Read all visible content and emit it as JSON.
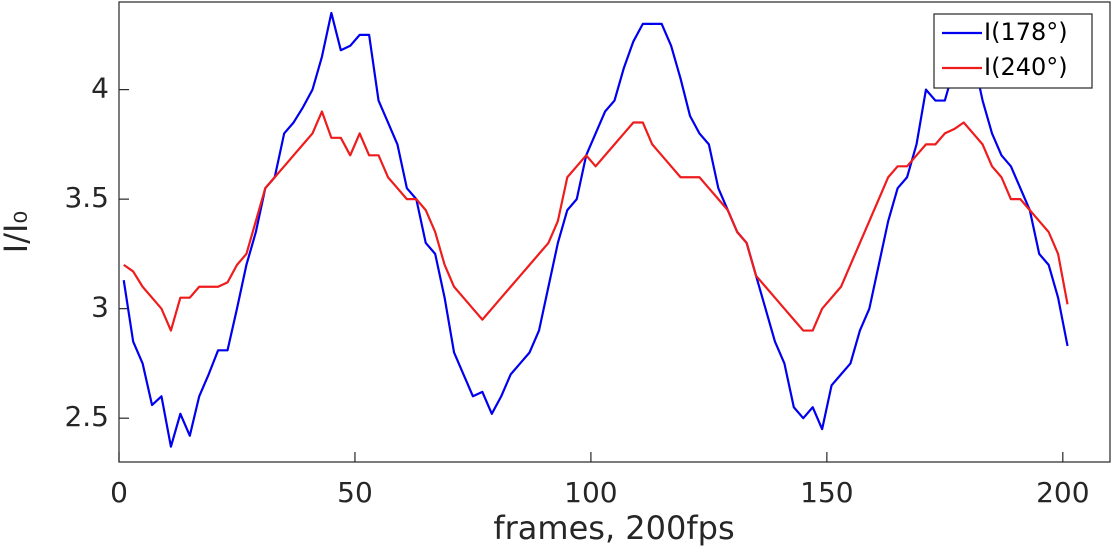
{
  "chart_data": {
    "type": "line",
    "xlabel": "frames, 200fps",
    "ylabel": "I/I₀",
    "x": [
      1,
      3,
      5,
      7,
      9,
      11,
      13,
      15,
      17,
      19,
      21,
      23,
      25,
      27,
      29,
      31,
      33,
      35,
      37,
      39,
      41,
      43,
      45,
      47,
      49,
      51,
      53,
      55,
      57,
      59,
      61,
      63,
      65,
      67,
      69,
      71,
      73,
      75,
      77,
      79,
      81,
      83,
      85,
      87,
      89,
      91,
      93,
      95,
      97,
      99,
      101,
      103,
      105,
      107,
      109,
      111,
      113,
      115,
      117,
      119,
      121,
      123,
      125,
      127,
      129,
      131,
      133,
      135,
      137,
      139,
      141,
      143,
      145,
      147,
      149,
      151,
      153,
      155,
      157,
      159,
      161,
      163,
      165,
      167,
      169,
      171,
      173,
      175,
      177,
      179,
      181,
      183,
      185,
      187,
      189,
      191,
      193,
      195,
      197,
      199,
      201
    ],
    "series": [
      {
        "name": "I(178°)",
        "color": "#0000ee",
        "values": [
          3.13,
          2.85,
          2.75,
          2.56,
          2.6,
          2.37,
          2.52,
          2.42,
          2.6,
          2.7,
          2.81,
          2.81,
          3.0,
          3.2,
          3.35,
          3.55,
          3.6,
          3.8,
          3.85,
          3.92,
          4.0,
          4.15,
          4.35,
          4.18,
          4.2,
          4.25,
          4.25,
          3.95,
          3.85,
          3.75,
          3.55,
          3.5,
          3.3,
          3.25,
          3.05,
          2.8,
          2.7,
          2.6,
          2.62,
          2.52,
          2.6,
          2.7,
          2.75,
          2.8,
          2.9,
          3.1,
          3.3,
          3.45,
          3.5,
          3.7,
          3.8,
          3.9,
          3.95,
          4.1,
          4.22,
          4.3,
          4.3,
          4.3,
          4.2,
          4.05,
          3.88,
          3.8,
          3.75,
          3.55,
          3.45,
          3.35,
          3.3,
          3.15,
          3.0,
          2.85,
          2.75,
          2.55,
          2.5,
          2.55,
          2.45,
          2.65,
          2.7,
          2.75,
          2.9,
          3.0,
          3.2,
          3.4,
          3.55,
          3.6,
          3.75,
          4.0,
          3.95,
          3.95,
          4.1,
          4.05,
          4.15,
          3.95,
          3.8,
          3.7,
          3.65,
          3.55,
          3.45,
          3.25,
          3.2,
          3.05,
          2.83
        ]
      },
      {
        "name": "I(240°)",
        "color": "#ee1c1c",
        "values": [
          3.2,
          3.17,
          3.1,
          3.05,
          3.0,
          2.9,
          3.05,
          3.05,
          3.1,
          3.1,
          3.1,
          3.12,
          3.2,
          3.25,
          3.4,
          3.55,
          3.6,
          3.65,
          3.7,
          3.75,
          3.8,
          3.9,
          3.78,
          3.78,
          3.7,
          3.8,
          3.7,
          3.7,
          3.6,
          3.55,
          3.5,
          3.5,
          3.45,
          3.35,
          3.2,
          3.1,
          3.05,
          3.0,
          2.95,
          3.0,
          3.05,
          3.1,
          3.15,
          3.2,
          3.25,
          3.3,
          3.4,
          3.6,
          3.65,
          3.7,
          3.65,
          3.7,
          3.75,
          3.8,
          3.85,
          3.85,
          3.75,
          3.7,
          3.65,
          3.6,
          3.6,
          3.6,
          3.55,
          3.5,
          3.45,
          3.35,
          3.3,
          3.15,
          3.1,
          3.05,
          3.0,
          2.95,
          2.9,
          2.9,
          3.0,
          3.05,
          3.1,
          3.2,
          3.3,
          3.4,
          3.5,
          3.6,
          3.65,
          3.65,
          3.7,
          3.75,
          3.75,
          3.8,
          3.82,
          3.85,
          3.8,
          3.75,
          3.65,
          3.6,
          3.5,
          3.5,
          3.45,
          3.4,
          3.35,
          3.25,
          3.02
        ]
      }
    ],
    "xlim": [
      0,
      210
    ],
    "ylim": [
      2.3,
      4.4
    ],
    "xticks": [
      0,
      50,
      100,
      150,
      200
    ],
    "yticks": [
      2.5,
      3,
      3.5,
      4
    ],
    "legend": "northeast"
  }
}
